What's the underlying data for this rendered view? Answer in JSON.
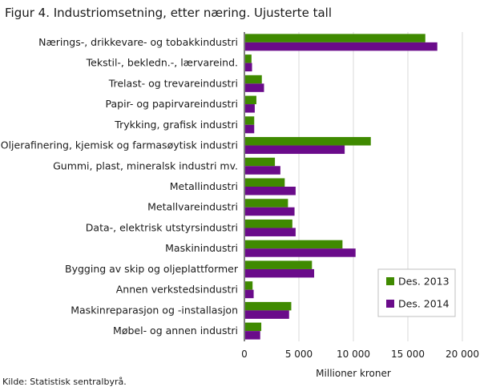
{
  "chart_data": {
    "type": "bar",
    "orientation": "horizontal",
    "title": "Figur 4. Industriomsetning, etter næring. Ujusterte tall",
    "xlabel": "Millioner  kroner",
    "ylabel": "",
    "xlim": [
      0,
      20000
    ],
    "x_ticks": [
      "0",
      "5 000",
      "10 000",
      "15 000",
      "20 000"
    ],
    "grid": "vertical",
    "legend_position": "bottom-right",
    "categories": [
      "Nærings-, drikkevare- og tobakkindustri",
      "Tekstil-, bekledn.-, lærvareind.",
      "Trelast- og trevareindustri",
      "Papir- og papirvareindustri",
      "Trykking, grafisk industri",
      "Oljerafinering, kjemisk og farmasøytisk industri",
      "Gummi, plast, mineralsk industri mv.",
      "Metallindustri",
      "Metallvareindustri",
      "Data-, elektrisk utstyrsindustri",
      "Maskinindustri",
      "Bygging av skip og oljeplattformer",
      "Annen verkstedsindustri",
      "Maskinreparasjon og -installasjon",
      "Møbel- og annen industri"
    ],
    "series": [
      {
        "name": "Des. 2013",
        "color": "#3f8a00",
        "values": [
          16600,
          650,
          1600,
          1100,
          900,
          11600,
          2800,
          3700,
          4000,
          4400,
          9000,
          6200,
          750,
          4300,
          1550
        ]
      },
      {
        "name": "Des. 2014",
        "color": "#6a0b8a",
        "values": [
          17700,
          700,
          1800,
          950,
          900,
          9200,
          3300,
          4700,
          4600,
          4700,
          10200,
          6400,
          850,
          4100,
          1450
        ]
      }
    ]
  },
  "source": "Kilde: Statistisk sentralbyrå."
}
